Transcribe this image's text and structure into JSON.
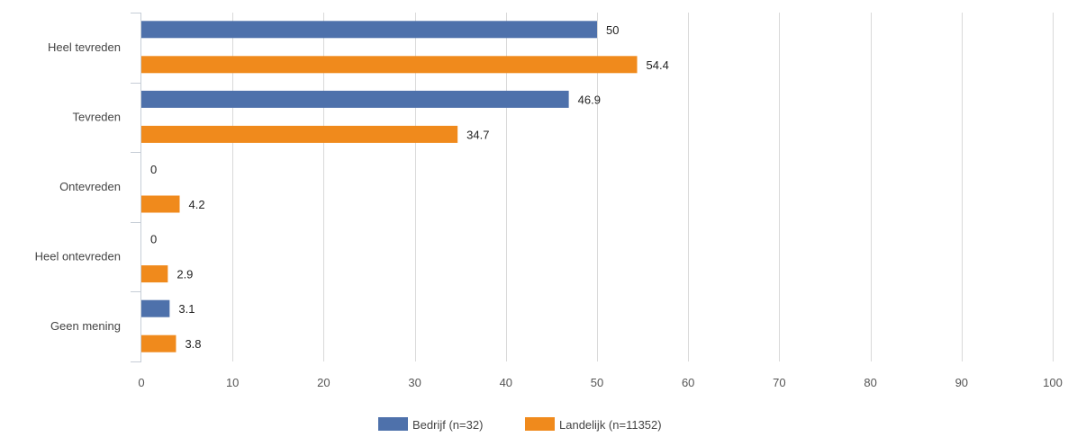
{
  "chart_data": {
    "type": "bar",
    "orientation": "horizontal",
    "categories": [
      "Heel tevreden",
      "Tevreden",
      "Ontevreden",
      "Heel ontevreden",
      "Geen mening"
    ],
    "series": [
      {
        "name": "Bedrijf (n=32)",
        "color": "#4e71ab",
        "values": [
          50,
          46.9,
          0,
          0,
          3.1
        ]
      },
      {
        "name": "Landelijk (n=11352)",
        "color": "#f08a1c",
        "values": [
          54.4,
          34.7,
          4.2,
          2.9,
          3.8
        ]
      }
    ],
    "xlim": [
      0,
      100
    ],
    "xticks": [
      0,
      10,
      20,
      30,
      40,
      50,
      60,
      70,
      80,
      90,
      100
    ],
    "grid": true,
    "legend": "bottom-center",
    "data_labels": true
  }
}
